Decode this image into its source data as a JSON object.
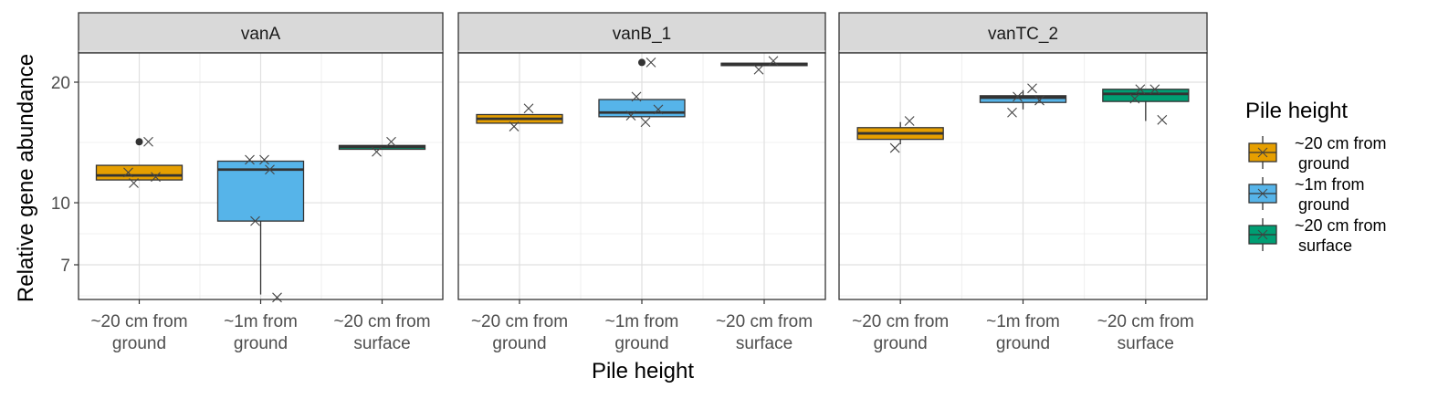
{
  "chart_data": {
    "type": "boxplot",
    "ylabel": "Relative gene abundance",
    "xlabel": "Pile height",
    "y_scale": "log",
    "ylim": [
      5.7,
      27
    ],
    "y_ticks": [
      7,
      10,
      20
    ],
    "categories": [
      [
        "~20 cm from",
        "ground"
      ],
      [
        "~1m from",
        "ground"
      ],
      [
        "~20 cm from",
        "surface"
      ]
    ],
    "colors": [
      "#E69F00",
      "#56B4E9",
      "#009E73"
    ],
    "legend": {
      "title": "Pile height",
      "position": "right",
      "entries": [
        [
          "~20 cm from",
          "ground"
        ],
        [
          "~1m from",
          "ground"
        ],
        [
          "~20 cm from",
          "surface"
        ]
      ]
    },
    "panels": [
      {
        "title": "vanA",
        "boxes": [
          {
            "category": 0,
            "q1": 11.4,
            "median": 11.7,
            "q3": 12.4,
            "whisker_low": 11.4,
            "whisker_high": 12.4,
            "outliers": [
              14.2
            ],
            "points": [
              14.2,
              11.2,
              11.6,
              11.9
            ]
          },
          {
            "category": 1,
            "q1": 9.0,
            "median": 12.1,
            "q3": 12.7,
            "whisker_low": 5.9,
            "whisker_high": 12.7,
            "outliers": [],
            "points": [
              12.1,
              9.0,
              5.8,
              12.8,
              12.8
            ]
          },
          {
            "category": 2,
            "q1": 13.6,
            "median": 13.8,
            "q3": 13.9,
            "whisker_low": 13.6,
            "whisker_high": 13.9,
            "outliers": [],
            "points": [
              14.2,
              13.4
            ]
          }
        ]
      },
      {
        "title": "vanB_1",
        "boxes": [
          {
            "category": 0,
            "q1": 15.8,
            "median": 16.2,
            "q3": 16.6,
            "whisker_low": 15.8,
            "whisker_high": 16.6,
            "outliers": [],
            "points": [
              17.2,
              15.5
            ]
          },
          {
            "category": 1,
            "q1": 16.4,
            "median": 16.8,
            "q3": 18.1,
            "whisker_low": 16.4,
            "whisker_high": 18.1,
            "outliers": [
              22.4
            ],
            "points": [
              22.4,
              18.4,
              17.1,
              16.5,
              15.9
            ]
          },
          {
            "category": 2,
            "q1": 22.0,
            "median": 22.2,
            "q3": 22.3,
            "whisker_low": 22.0,
            "whisker_high": 22.3,
            "outliers": [],
            "points": [
              22.6,
              21.5
            ]
          }
        ]
      },
      {
        "title": "vanTC_2",
        "boxes": [
          {
            "category": 0,
            "q1": 14.4,
            "median": 14.9,
            "q3": 15.4,
            "whisker_low": 14.0,
            "whisker_high": 15.9,
            "outliers": [],
            "points": [
              16.0,
              13.7
            ]
          },
          {
            "category": 1,
            "q1": 17.8,
            "median": 18.3,
            "q3": 18.5,
            "whisker_low": 17.1,
            "whisker_high": 19.1,
            "outliers": [],
            "points": [
              19.3,
              18.4,
              18.0,
              16.8
            ]
          },
          {
            "category": 2,
            "q1": 17.9,
            "median": 18.7,
            "q3": 19.2,
            "whisker_low": 16.0,
            "whisker_high": 19.2,
            "outliers": [],
            "points": [
              19.2,
              19.2,
              16.1,
              18.2
            ]
          }
        ]
      }
    ]
  }
}
